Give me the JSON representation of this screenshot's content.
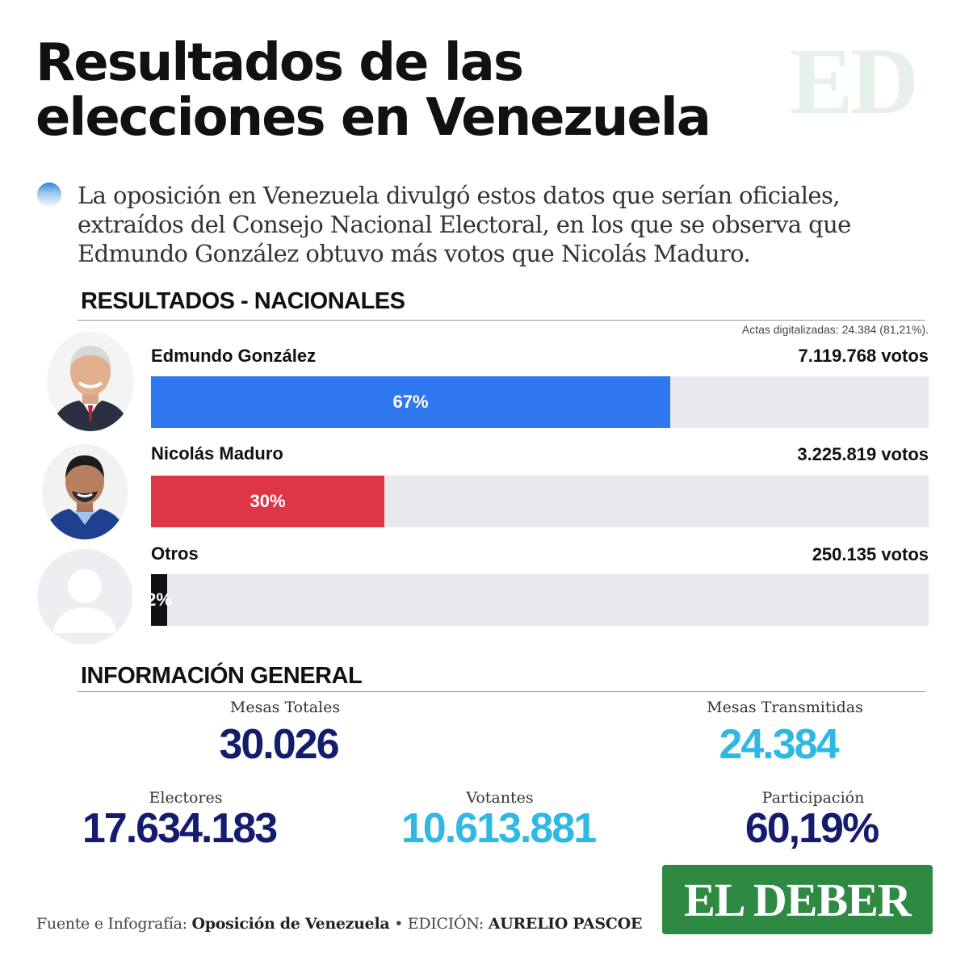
{
  "header": {
    "title_line1": "Resultados de las",
    "title_line2": "elecciones en Venezuela",
    "watermark": "ED"
  },
  "intro": "La oposición en Venezuela divulgó estos datos que serían oficiales, extraídos del Consejo Nacional Electoral, en los que se observa que Edmundo González obtuvo más votos que Nicolás Maduro.",
  "results": {
    "heading": "RESULTADOS - NACIONALES",
    "note": "Actas digitalizadas: 24.384 (81,21%)."
  },
  "chart_data": {
    "type": "bar",
    "orientation": "horizontal",
    "title": "RESULTADOS - NACIONALES",
    "categories": [
      "Edmundo González",
      "Nicolás Maduro",
      "Otros"
    ],
    "values": [
      67,
      30,
      2
    ],
    "value_labels": [
      "67%",
      "30%",
      "2%"
    ],
    "votes_labels": [
      "7.119.768 votos",
      "3.225.819 votos",
      "250.135 votos"
    ],
    "colors": [
      "#2f78f0",
      "#de3648",
      "#111111"
    ],
    "xlim": [
      0,
      100
    ]
  },
  "general": {
    "heading": "INFORMACIÓN GENERAL",
    "mesas_totales_label": "Mesas Totales",
    "mesas_totales_value": "30.026",
    "mesas_transmitidas_label": "Mesas Transmitidas",
    "mesas_transmitidas_value": "24.384",
    "electores_label": "Electores",
    "electores_value": "17.634.183",
    "votantes_label": "Votantes",
    "votantes_value": "10.613.881",
    "participacion_label": "Participación",
    "participacion_value": "60,19%",
    "colors": {
      "dark": "#141c6e",
      "light": "#2fb8e4"
    }
  },
  "footer": {
    "source_prefix": "Fuente e Infografía: ",
    "source": "Oposición de Venezuela",
    "separator": " • EDICIÓN: ",
    "editor": "AURELIO PASCOE"
  },
  "logo": {
    "text": "EL DEBER",
    "color": "#2e8a42"
  }
}
